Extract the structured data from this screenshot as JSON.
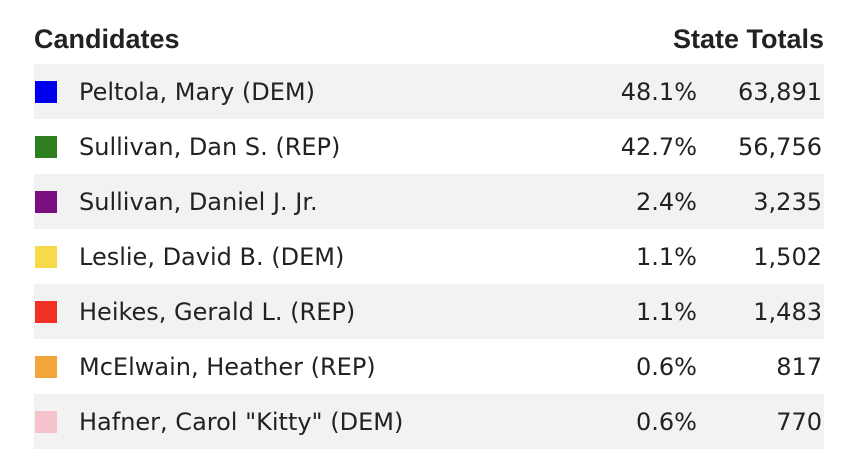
{
  "chart_data": {
    "type": "table",
    "columns": [
      "Candidates",
      "State Totals"
    ],
    "rows": [
      {
        "name": "Peltola, Mary (DEM)",
        "color": "#0000ee",
        "pct": "48.1%",
        "votes": "63,891"
      },
      {
        "name": "Sullivan, Dan S. (REP)",
        "color": "#2e7d1e",
        "pct": "42.7%",
        "votes": "56,756"
      },
      {
        "name": "Sullivan, Daniel J. Jr.",
        "color": "#7a1080",
        "pct": "2.4%",
        "votes": "3,235"
      },
      {
        "name": "Leslie, David B. (DEM)",
        "color": "#f7da4a",
        "pct": "1.1%",
        "votes": "1,502"
      },
      {
        "name": "Heikes, Gerald L. (REP)",
        "color": "#ee3124",
        "pct": "1.1%",
        "votes": "1,483"
      },
      {
        "name": "McElwain, Heather (REP)",
        "color": "#f2a63a",
        "pct": "0.6%",
        "votes": "817"
      },
      {
        "name": "Hafner, Carol \"Kitty\" (DEM)",
        "color": "#f5c3cb",
        "pct": "0.6%",
        "votes": "770"
      }
    ]
  }
}
